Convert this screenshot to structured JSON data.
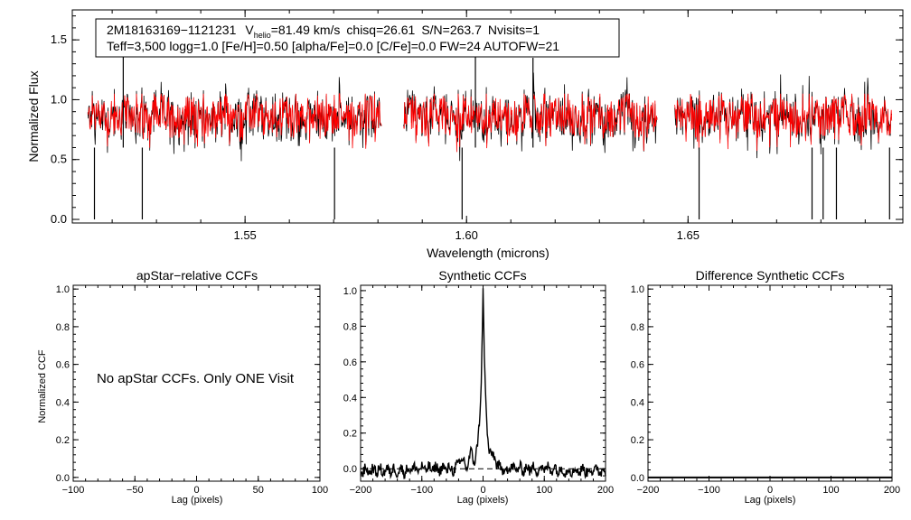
{
  "colors": {
    "observed": "#000000",
    "model": "#ff0000",
    "axes": "#000000"
  },
  "chart_data": [
    {
      "type": "line",
      "id": "spectrum",
      "xlabel": "Wavelength (microns)",
      "ylabel": "Normalized Flux",
      "xlim": [
        1.511,
        1.6985
      ],
      "ylim": [
        -0.03,
        1.75
      ],
      "xticks": [
        1.55,
        1.6,
        1.65
      ],
      "xtick_labels": [
        "1.55",
        "1.60",
        "1.65"
      ],
      "yticks": [
        0.0,
        0.5,
        1.0,
        1.5
      ],
      "ytick_labels": [
        "0.0",
        "0.5",
        "1.0",
        "1.5"
      ],
      "info": {
        "star_id": "2M18163169−1121231",
        "v_prefix": "V",
        "v_sub": "helio",
        "v_value": "=81.49 km/s",
        "chisq": "chisq=26.61",
        "snr": "S/N=263.7",
        "nvisits": "Nvisits=1",
        "params": "Teff=3,500 logg=1.0 [Fe/H]=0.50 [alpha/Fe]=0.0 [C/Fe]=0.0 FW=24 AUTOFW=21"
      },
      "segments": [
        [
          1.5145,
          1.5808
        ],
        [
          1.5858,
          1.643
        ],
        [
          1.647,
          1.696
        ]
      ],
      "series": [
        {
          "name": "observed",
          "mean": 0.84,
          "amplitude": 0.18
        },
        {
          "name": "model",
          "mean": 0.86,
          "amplitude": 0.15
        }
      ],
      "features": [
        {
          "x": 1.516,
          "y": 0.0
        },
        {
          "x": 1.5225,
          "y": 1.4
        },
        {
          "x": 1.5268,
          "y": 0.0
        },
        {
          "x": 1.5702,
          "y": 0.0
        },
        {
          "x": 1.599,
          "y": 0.0
        },
        {
          "x": 1.602,
          "y": 1.4
        },
        {
          "x": 1.615,
          "y": 1.35
        },
        {
          "x": 1.6525,
          "y": 0.0
        },
        {
          "x": 1.678,
          "y": 0.0
        },
        {
          "x": 1.6805,
          "y": 0.0
        },
        {
          "x": 1.6835,
          "y": 0.0
        },
        {
          "x": 1.6955,
          "y": 0.0
        }
      ]
    },
    {
      "type": "line",
      "id": "apstar",
      "title": "apStar−relative CCFs",
      "xlabel": "Lag (pixels)",
      "ylabel": "Normalized CCF",
      "xlim": [
        -100,
        100
      ],
      "ylim": [
        -0.02,
        1.02
      ],
      "xticks": [
        -100,
        -50,
        0,
        50,
        100
      ],
      "xtick_labels": [
        "−100",
        "−50",
        "0",
        "50",
        "100"
      ],
      "yticks": [
        0.0,
        0.2,
        0.4,
        0.6,
        0.8,
        1.0
      ],
      "ytick_labels": [
        "0.0",
        "0.2",
        "0.4",
        "0.6",
        "0.8",
        "1.0"
      ],
      "annotation": "No apStar CCFs.  Only ONE Visit",
      "series": []
    },
    {
      "type": "line",
      "id": "synthetic",
      "title": "Synthetic CCFs",
      "xlabel": "Lag (pixels)",
      "xlim": [
        -200,
        200
      ],
      "ylim": [
        -0.07,
        1.03
      ],
      "xticks": [
        -200,
        -100,
        0,
        100,
        200
      ],
      "xtick_labels": [
        "−200",
        "−100",
        "0",
        "100",
        "200"
      ],
      "yticks": [
        0.0,
        0.2,
        0.4,
        0.6,
        0.8,
        1.0
      ],
      "ytick_labels": [
        "0.0",
        "0.2",
        "0.4",
        "0.6",
        "0.8",
        "1.0"
      ],
      "reference_line": 0.0,
      "series": [
        {
          "name": "ccf",
          "peak_lag": 0,
          "peak_value": 1.0,
          "baseline": 0.0,
          "noise": 0.03
        }
      ]
    },
    {
      "type": "line",
      "id": "difference",
      "title": "Difference Synthetic CCFs",
      "xlabel": "Lag (pixels)",
      "xlim": [
        -200,
        200
      ],
      "ylim": [
        -0.02,
        1.02
      ],
      "xticks": [
        -200,
        -100,
        0,
        100,
        200
      ],
      "xtick_labels": [
        "−200",
        "−100",
        "0",
        "100",
        "200"
      ],
      "yticks": [
        0.0,
        0.2,
        0.4,
        0.6,
        0.8,
        1.0
      ],
      "ytick_labels": [
        "0.0",
        "0.2",
        "0.4",
        "0.6",
        "0.8",
        "1.0"
      ],
      "series": [
        {
          "name": "difference",
          "value": 0.0
        }
      ]
    }
  ]
}
